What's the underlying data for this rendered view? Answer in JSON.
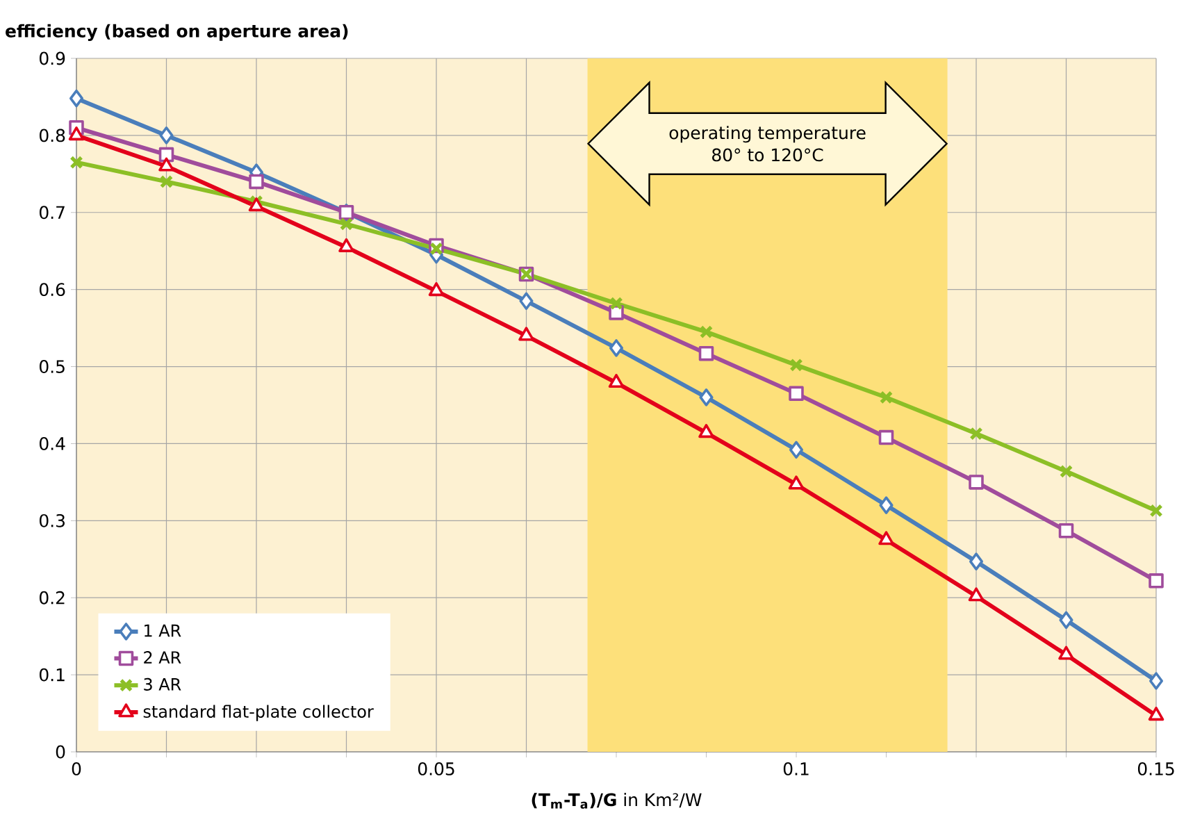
{
  "chart_data": {
    "type": "line",
    "ylabel": "efficiency (based on aperture area)",
    "xlabel": "**(T$_{m}$-T$_{a}$)/G** in Km²/W",
    "x": [
      0,
      0.0125,
      0.025,
      0.0375,
      0.05,
      0.0625,
      0.075,
      0.0875,
      0.1,
      0.1125,
      0.125,
      0.1375,
      0.15
    ],
    "series": [
      {
        "name": "1 AR",
        "color": "#4a7ebb",
        "marker": "diamond",
        "values": [
          0.848,
          0.8,
          0.752,
          0.7,
          0.645,
          0.585,
          0.524,
          0.46,
          0.392,
          0.32,
          0.247,
          0.171,
          0.092
        ]
      },
      {
        "name": "2 AR",
        "color": "#a04c9c",
        "marker": "square",
        "values": [
          0.81,
          0.775,
          0.74,
          0.7,
          0.657,
          0.62,
          0.57,
          0.517,
          0.465,
          0.408,
          0.35,
          0.287,
          0.222
        ]
      },
      {
        "name": "3 AR",
        "color": "#8cbf26",
        "marker": "cross",
        "values": [
          0.765,
          0.74,
          0.714,
          0.685,
          0.653,
          0.62,
          0.582,
          0.545,
          0.502,
          0.46,
          0.413,
          0.364,
          0.313
        ]
      },
      {
        "name": "standard flat-plate collector",
        "color": "#e3001b",
        "marker": "triangle",
        "values": [
          0.8,
          0.76,
          0.708,
          0.655,
          0.598,
          0.54,
          0.479,
          0.414,
          0.347,
          0.275,
          0.202,
          0.126,
          0.047
        ]
      }
    ],
    "xlim": [
      0,
      0.15
    ],
    "ylim": [
      0,
      0.9
    ],
    "xticks": [
      0,
      {
        "value": 0.0125,
        "label": null
      },
      {
        "value": 0.025,
        "label": null
      },
      {
        "value": 0.0375,
        "label": null
      },
      0.05,
      {
        "value": 0.0625,
        "label": null
      },
      {
        "value": 0.075,
        "label": null
      },
      {
        "value": 0.0875,
        "label": null
      },
      0.1,
      {
        "value": 0.1125,
        "label": null
      },
      {
        "value": 0.125,
        "label": null
      },
      {
        "value": 0.1375,
        "label": null
      },
      0.15
    ],
    "yticks": [
      0,
      0.1,
      0.2,
      0.3,
      0.4,
      0.5,
      0.6,
      0.7,
      0.8,
      0.9
    ],
    "bands": [
      {
        "axis": "x",
        "from": 0.071,
        "to": 0.121,
        "label": "operating temperature 80° to 120°C",
        "color": "#fde07a"
      }
    ],
    "grid": true,
    "legend": "bottom left",
    "line_style": "solid"
  }
}
